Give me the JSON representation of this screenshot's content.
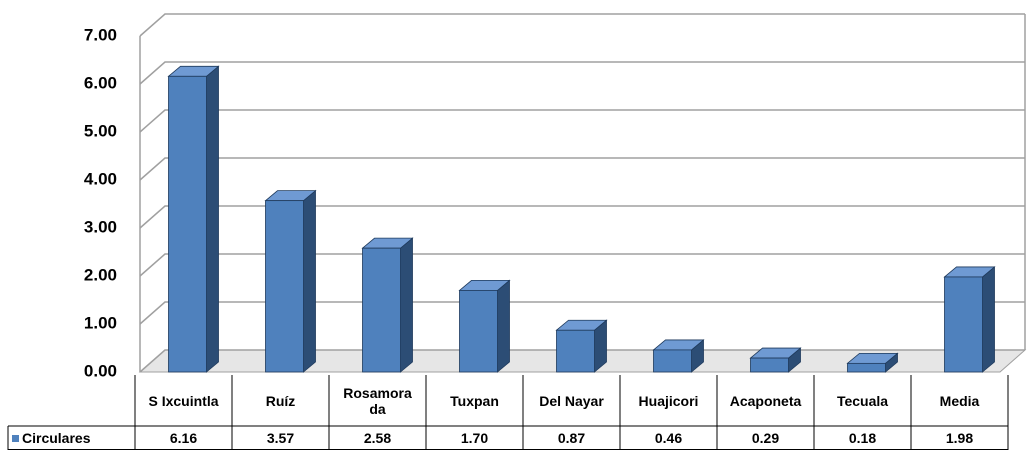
{
  "chart_data": {
    "type": "bar",
    "categories": [
      "S Ixcuintla",
      "Ruíz",
      "Rosamorada",
      "Tuxpan",
      "Del Nayar",
      "Huajicori",
      "Acaponeta",
      "Tecuala",
      "Media"
    ],
    "series": [
      {
        "name": "Circulares",
        "color": "#4f81bd",
        "values": [
          6.16,
          3.57,
          2.58,
          1.7,
          0.87,
          0.46,
          0.29,
          0.18,
          1.98
        ],
        "value_labels": [
          "6.16",
          "3.57",
          "2.58",
          "1.70",
          "0.87",
          "0.46",
          "0.29",
          "0.18",
          "1.98"
        ]
      }
    ],
    "ylim": [
      0,
      7
    ],
    "yticks": [
      {
        "value": 0,
        "label": "0.00"
      },
      {
        "value": 1,
        "label": "1.00"
      },
      {
        "value": 2,
        "label": "2.00"
      },
      {
        "value": 3,
        "label": "3.00"
      },
      {
        "value": 4,
        "label": "4.00"
      },
      {
        "value": 5,
        "label": "5.00"
      },
      {
        "value": 6,
        "label": "6.00"
      },
      {
        "value": 7,
        "label": "7.00"
      }
    ],
    "grid": true
  }
}
